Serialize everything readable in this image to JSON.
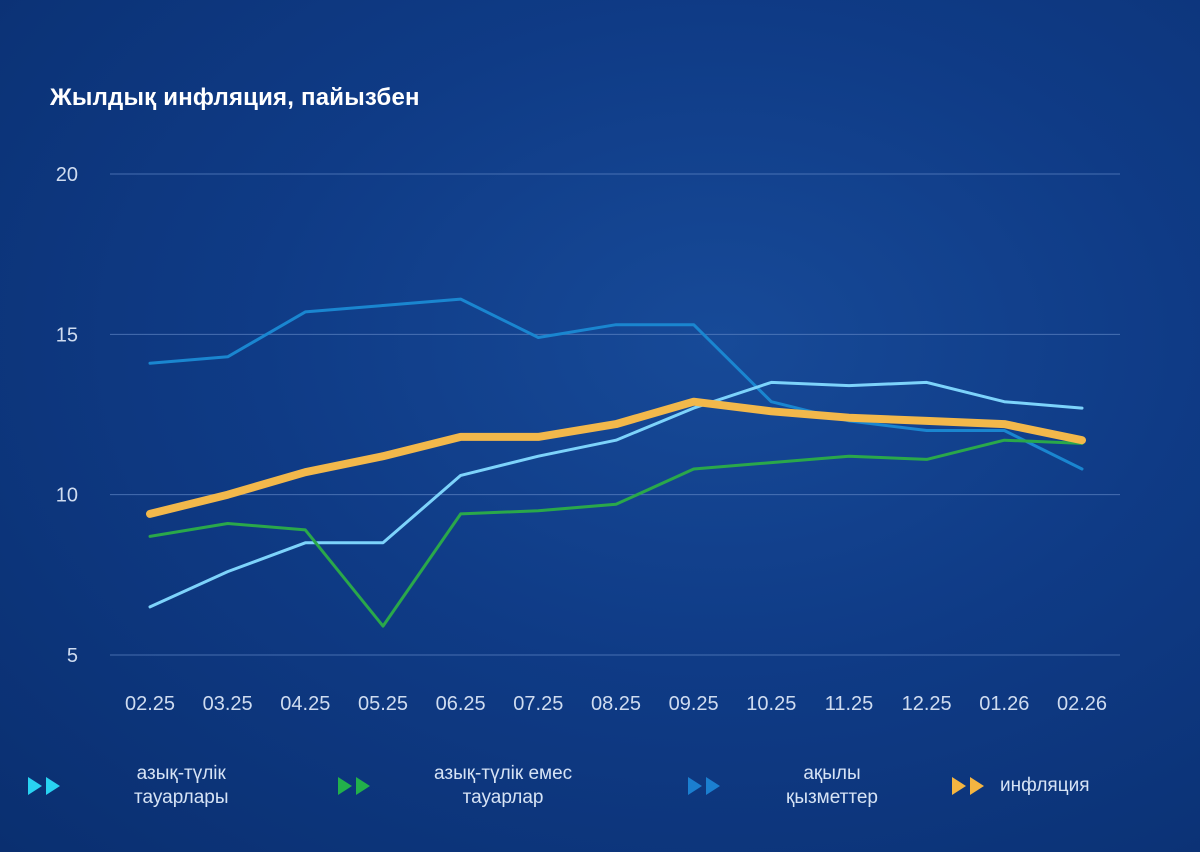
{
  "chart_data": {
    "type": "line",
    "title": "Жылдық инфляция, пайызбен",
    "categories": [
      "02.25",
      "03.25",
      "04.25",
      "05.25",
      "06.25",
      "07.25",
      "08.25",
      "09.25",
      "10.25",
      "11.25",
      "12.25",
      "01.26",
      "02.26"
    ],
    "y_ticks": [
      5,
      10,
      15,
      20
    ],
    "ylim": [
      5,
      20
    ],
    "grid": true,
    "legend_position": "bottom",
    "series": [
      {
        "name": "азық-түлік тауарлары",
        "color": "#7dd3fb",
        "width": 3,
        "values": [
          6.5,
          7.6,
          8.5,
          8.5,
          10.6,
          11.2,
          11.7,
          12.7,
          13.5,
          13.4,
          13.5,
          12.9,
          12.7
        ]
      },
      {
        "name": "азық-түлік емес тауарлар",
        "color": "#2aa84a",
        "width": 3,
        "values": [
          8.7,
          9.1,
          8.9,
          5.9,
          9.4,
          9.5,
          9.7,
          10.8,
          11.0,
          11.2,
          11.1,
          11.7,
          11.6
        ]
      },
      {
        "name": "ақылы қызметтер",
        "color": "#1a86d0",
        "width": 3,
        "values": [
          14.1,
          14.3,
          15.7,
          15.9,
          16.1,
          14.9,
          15.3,
          15.3,
          12.9,
          12.3,
          12.0,
          12.0,
          10.8
        ]
      },
      {
        "name": "инфляция",
        "color": "#f2b84b",
        "width": 8,
        "values": [
          9.4,
          10.0,
          10.7,
          11.2,
          11.8,
          11.8,
          12.2,
          12.9,
          12.6,
          12.4,
          12.3,
          12.2,
          11.7
        ]
      }
    ]
  },
  "legend": [
    {
      "line1": "азық-түлік",
      "line2": "тауарлары",
      "arrow_color": "#29d3f2"
    },
    {
      "line1": "азық-түлік емес",
      "line2": "тауарлар",
      "arrow_color": "#22b04b"
    },
    {
      "line1": "ақылы",
      "line2": "қызметтер",
      "arrow_color": "#1b7fd0"
    },
    {
      "line1": "инфляция",
      "line2": "",
      "arrow_color": "#f4b541"
    }
  ]
}
